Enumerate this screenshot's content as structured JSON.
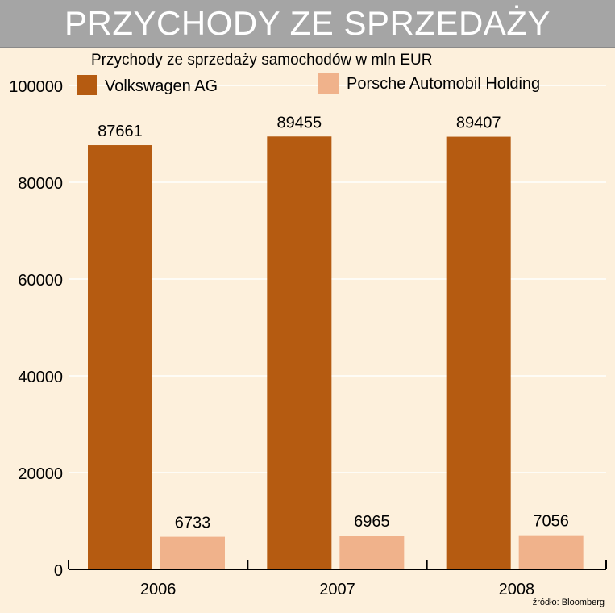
{
  "banner": {
    "title": "PRZYCHODY ZE SPRZEDAŻY"
  },
  "chart_data": {
    "type": "bar",
    "title": "Przychody ze sprzedaży samochodów w mln EUR",
    "categories": [
      "2006",
      "2007",
      "2008"
    ],
    "series": [
      {
        "name": "Volkswagen AG",
        "values": [
          87661,
          89455,
          89407
        ],
        "color": "#b55b11"
      },
      {
        "name": "Porsche Automobil Holding",
        "values": [
          6733,
          6965,
          7056
        ],
        "color": "#f0b28b"
      }
    ],
    "ylim": [
      0,
      100000
    ],
    "yticks": [
      "0",
      "20000",
      "40000",
      "60000",
      "80000",
      "100000"
    ],
    "data_labels": [
      [
        "87661",
        "89455",
        "89407"
      ],
      [
        "6733",
        "6965",
        "7056"
      ]
    ],
    "grid": true,
    "legend_position": "top",
    "xlabel": "",
    "ylabel": "",
    "source": "źródło: Bloomberg"
  },
  "colors": {
    "background": "#fdf0dc",
    "banner": "#a5a5a5",
    "grid": "#ffffff",
    "axis": "#000000"
  }
}
